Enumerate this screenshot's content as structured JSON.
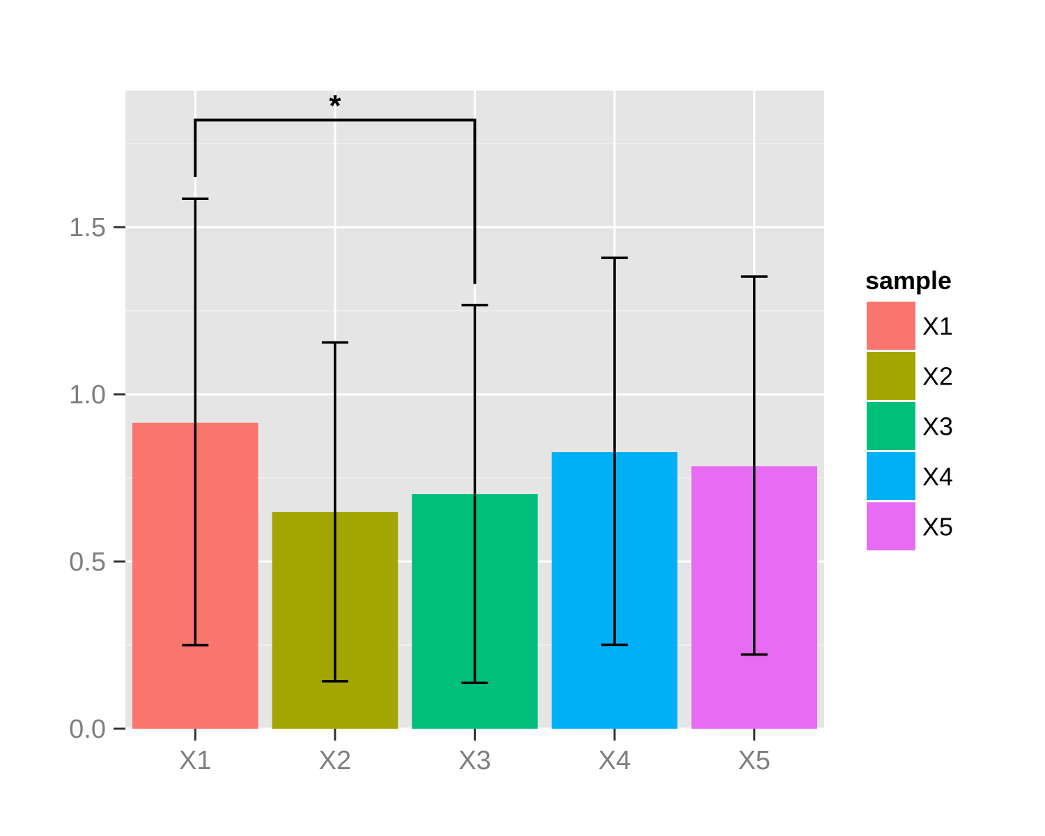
{
  "chart_data": {
    "type": "bar",
    "categories": [
      "X1",
      "X2",
      "X3",
      "X4",
      "X5"
    ],
    "values": [
      0.915,
      0.648,
      0.702,
      0.827,
      0.785
    ],
    "error_low": [
      0.25,
      0.142,
      0.137,
      0.251,
      0.222
    ],
    "error_high": [
      1.585,
      1.155,
      1.267,
      1.408,
      1.352
    ],
    "colors": [
      "#f8766d",
      "#a3a500",
      "#00bf7d",
      "#00b0f6",
      "#e76bf3"
    ],
    "y_ticks": [
      "0.0",
      "0.5",
      "1.0",
      "1.5"
    ],
    "y_tick_values": [
      0.0,
      0.5,
      1.0,
      1.5
    ],
    "ylim": [
      0,
      1.9
    ],
    "xlabel": "",
    "ylabel": "",
    "grid": true,
    "legend": {
      "title": "sample",
      "placement": "right",
      "entries": [
        "X1",
        "X2",
        "X3",
        "X4",
        "X5"
      ]
    },
    "annotation": {
      "label": "*",
      "from": "X1",
      "to": "X3",
      "y": 1.82,
      "left_drop_to": 1.65,
      "right_drop_to": 1.33
    }
  }
}
